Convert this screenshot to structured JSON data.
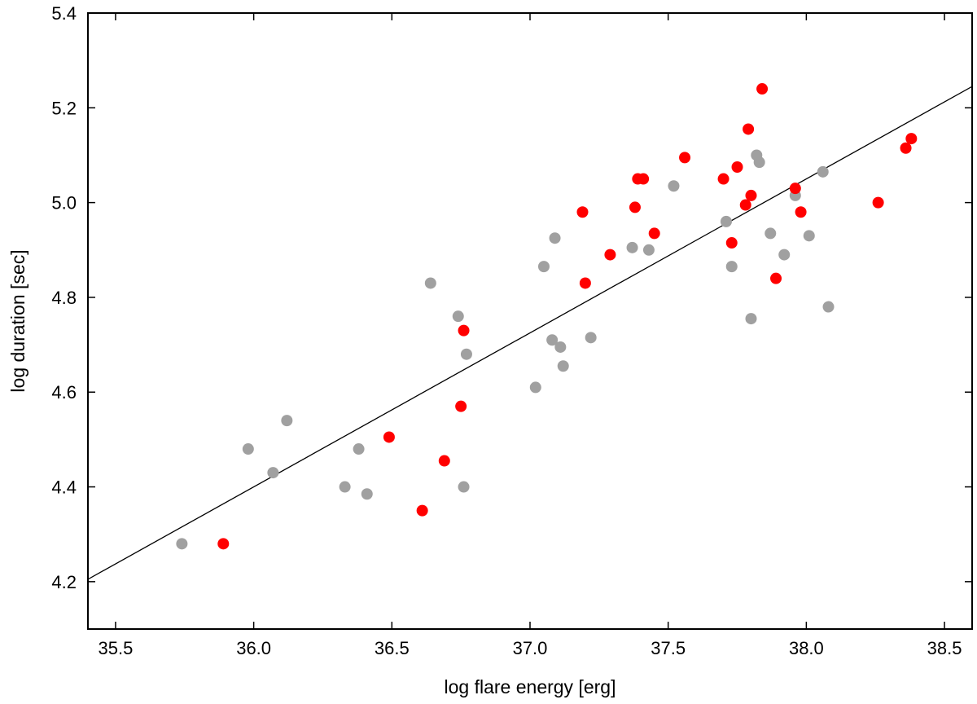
{
  "chart_data": {
    "type": "scatter",
    "title": "",
    "xlabel": "log flare energy [erg]",
    "ylabel": "log duration [sec]",
    "xlim": [
      35.4,
      38.6
    ],
    "ylim": [
      4.1,
      5.4
    ],
    "xticks": [
      35.5,
      36.0,
      36.5,
      37.0,
      37.5,
      38.0,
      38.5
    ],
    "xtick_labels": [
      "35.5",
      "36.0",
      "36.5",
      "37.0",
      "37.5",
      "38.0",
      "38.5"
    ],
    "yticks": [
      4.2,
      4.4,
      4.6,
      4.8,
      5.0,
      5.2,
      5.4
    ],
    "ytick_labels": [
      "4.2",
      "4.4",
      "4.6",
      "4.8",
      "5.0",
      "5.2",
      "5.4"
    ],
    "grid": false,
    "legend": "none",
    "series": [
      {
        "color": "#a0a0a0",
        "points": [
          [
            35.74,
            4.28
          ],
          [
            35.98,
            4.48
          ],
          [
            36.07,
            4.43
          ],
          [
            36.12,
            4.54
          ],
          [
            36.33,
            4.4
          ],
          [
            36.38,
            4.48
          ],
          [
            36.41,
            4.385
          ],
          [
            36.64,
            4.83
          ],
          [
            36.74,
            4.76
          ],
          [
            36.76,
            4.4
          ],
          [
            36.77,
            4.68
          ],
          [
            37.02,
            4.61
          ],
          [
            37.05,
            4.865
          ],
          [
            37.08,
            4.71
          ],
          [
            37.09,
            4.925
          ],
          [
            37.11,
            4.695
          ],
          [
            37.12,
            4.655
          ],
          [
            37.22,
            4.715
          ],
          [
            37.37,
            4.905
          ],
          [
            37.43,
            4.9
          ],
          [
            37.52,
            5.035
          ],
          [
            37.71,
            4.96
          ],
          [
            37.73,
            4.865
          ],
          [
            37.8,
            4.755
          ],
          [
            37.82,
            5.1
          ],
          [
            37.83,
            5.085
          ],
          [
            37.87,
            4.935
          ],
          [
            37.92,
            4.89
          ],
          [
            37.96,
            5.015
          ],
          [
            38.01,
            4.93
          ],
          [
            38.06,
            5.065
          ],
          [
            38.08,
            4.78
          ]
        ]
      },
      {
        "color": "#ff0000",
        "points": [
          [
            35.89,
            4.28
          ],
          [
            36.49,
            4.505
          ],
          [
            36.61,
            4.35
          ],
          [
            36.69,
            4.455
          ],
          [
            36.75,
            4.57
          ],
          [
            36.76,
            4.73
          ],
          [
            37.19,
            4.98
          ],
          [
            37.2,
            4.83
          ],
          [
            37.29,
            4.89
          ],
          [
            37.38,
            4.99
          ],
          [
            37.39,
            5.05
          ],
          [
            37.41,
            5.05
          ],
          [
            37.45,
            4.935
          ],
          [
            37.56,
            5.095
          ],
          [
            37.7,
            5.05
          ],
          [
            37.73,
            4.915
          ],
          [
            37.75,
            5.075
          ],
          [
            37.78,
            4.995
          ],
          [
            37.79,
            5.155
          ],
          [
            37.8,
            5.015
          ],
          [
            37.84,
            5.24
          ],
          [
            37.89,
            4.84
          ],
          [
            37.96,
            5.03
          ],
          [
            37.98,
            4.98
          ],
          [
            38.26,
            5.0
          ],
          [
            38.36,
            5.115
          ],
          [
            38.38,
            5.135
          ]
        ]
      }
    ],
    "fit_line": {
      "color": "#000000",
      "x": [
        35.4,
        38.6
      ],
      "y": [
        4.205,
        5.245
      ]
    }
  }
}
